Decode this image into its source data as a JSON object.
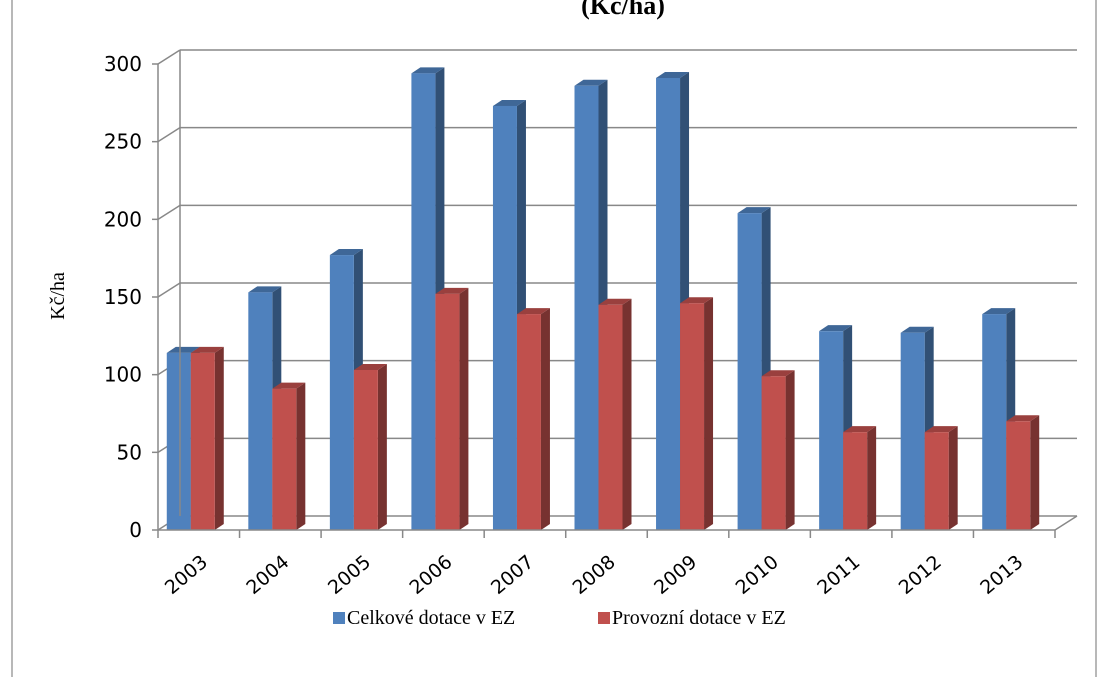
{
  "chart_data": {
    "type": "bar",
    "title": "(Kč/ha)",
    "ylabel": "Kč/ha",
    "xlabel": "",
    "categories": [
      "2003",
      "2004",
      "2005",
      "2006",
      "2007",
      "2008",
      "2009",
      "2010",
      "2011",
      "2012",
      "2013"
    ],
    "series": [
      {
        "name": "Celkové dotace v EZ",
        "color": "#4f81bd",
        "values": [
          114,
          153,
          177,
          294,
          273,
          286,
          291,
          204,
          128,
          127,
          139
        ]
      },
      {
        "name": "Provozní dotace v EZ",
        "color": "#c0504d",
        "values": [
          114,
          91,
          103,
          152,
          139,
          145,
          146,
          99,
          63,
          63,
          70
        ]
      }
    ],
    "ylim": [
      0,
      300
    ],
    "yticks": [
      0,
      50,
      100,
      150,
      200,
      250,
      300
    ],
    "grid": true,
    "legend": "bottom",
    "style": "3d-clustered-column"
  }
}
